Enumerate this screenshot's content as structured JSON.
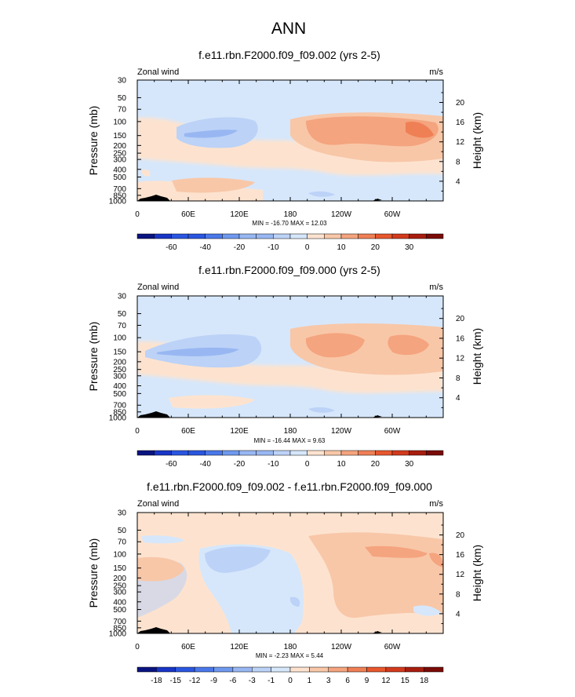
{
  "figure": {
    "title": "ANN"
  },
  "chart_data": [
    {
      "type": "heatmap",
      "title": "f.e11.rbn.F2000.f09_f09.002 (yrs 2-5)",
      "variable": "Zonal wind",
      "units": "m/s",
      "xlabel": "",
      "ylabel": "Pressure (mb)",
      "y2label": "Height (km)",
      "x_ticks": [
        "0",
        "60E",
        "120E",
        "180",
        "120W",
        "60W"
      ],
      "x_range": [
        0,
        360
      ],
      "pressure_ticks": [
        "30",
        "50",
        "70",
        "100",
        "150",
        "200",
        "250",
        "300",
        "400",
        "500",
        "700",
        "850",
        "1000"
      ],
      "pressure_range": [
        30,
        1000
      ],
      "height_ticks": [
        "20",
        "16",
        "12",
        "8",
        "4"
      ],
      "stats": "MIN = -16.70  MAX =  12.03",
      "min": -16.7,
      "max": 12.03,
      "colorbar_labels": [
        "-60",
        "-40",
        "-20",
        "-10",
        "0",
        "10",
        "20",
        "30"
      ],
      "levels": [
        -70,
        -60,
        -50,
        -40,
        -30,
        -20,
        -15,
        -10,
        -5,
        0,
        5,
        10,
        15,
        20,
        25,
        30,
        35
      ]
    },
    {
      "type": "heatmap",
      "title": "f.e11.rbn.F2000.f09_f09.000 (yrs 2-5)",
      "variable": "Zonal wind",
      "units": "m/s",
      "xlabel": "",
      "ylabel": "Pressure (mb)",
      "y2label": "Height (km)",
      "x_ticks": [
        "0",
        "60E",
        "120E",
        "180",
        "120W",
        "60W"
      ],
      "x_range": [
        0,
        360
      ],
      "pressure_ticks": [
        "30",
        "50",
        "70",
        "100",
        "150",
        "200",
        "250",
        "300",
        "400",
        "500",
        "700",
        "850",
        "1000"
      ],
      "pressure_range": [
        30,
        1000
      ],
      "height_ticks": [
        "20",
        "16",
        "12",
        "8",
        "4"
      ],
      "stats": "MIN = -16.44  MAX =  9.63",
      "min": -16.44,
      "max": 9.63,
      "colorbar_labels": [
        "-60",
        "-40",
        "-20",
        "-10",
        "0",
        "10",
        "20",
        "30"
      ],
      "levels": [
        -70,
        -60,
        -50,
        -40,
        -30,
        -20,
        -15,
        -10,
        -5,
        0,
        5,
        10,
        15,
        20,
        25,
        30,
        35
      ]
    },
    {
      "type": "heatmap",
      "title": "f.e11.rbn.F2000.f09_f09.002 - f.e11.rbn.F2000.f09_f09.000",
      "variable": "Zonal wind",
      "units": "m/s",
      "xlabel": "",
      "ylabel": "Pressure (mb)",
      "y2label": "Height (km)",
      "x_ticks": [
        "0",
        "60E",
        "120E",
        "180",
        "120W",
        "60W"
      ],
      "x_range": [
        0,
        360
      ],
      "pressure_ticks": [
        "30",
        "50",
        "70",
        "100",
        "150",
        "200",
        "250",
        "300",
        "400",
        "500",
        "700",
        "850",
        "1000"
      ],
      "pressure_range": [
        30,
        1000
      ],
      "height_ticks": [
        "20",
        "16",
        "12",
        "8",
        "4"
      ],
      "stats": "MIN = -2.23  MAX =  5.44",
      "min": -2.23,
      "max": 5.44,
      "colorbar_labels": [
        "-18",
        "-15",
        "-12",
        "-9",
        "-6",
        "-3",
        "-1",
        "0",
        "1",
        "3",
        "6",
        "9",
        "12",
        "15",
        "18"
      ],
      "levels": [
        -18,
        -15,
        -12,
        -9,
        -6,
        -3,
        -1,
        0,
        1,
        3,
        6,
        9,
        12,
        15,
        18
      ]
    }
  ],
  "colors": {
    "cool": [
      "#0a1480",
      "#1835c6",
      "#2a56e0",
      "#4a78ea",
      "#6f99ef",
      "#98b7f2",
      "#bcd2f7",
      "#d6e7fb"
    ],
    "warm": [
      "#fde3cf",
      "#f8c7a8",
      "#f4a47e",
      "#ef7f55",
      "#e8572e",
      "#d23a1c",
      "#a81e0f",
      "#7a0b07"
    ],
    "topo": "#000000"
  }
}
